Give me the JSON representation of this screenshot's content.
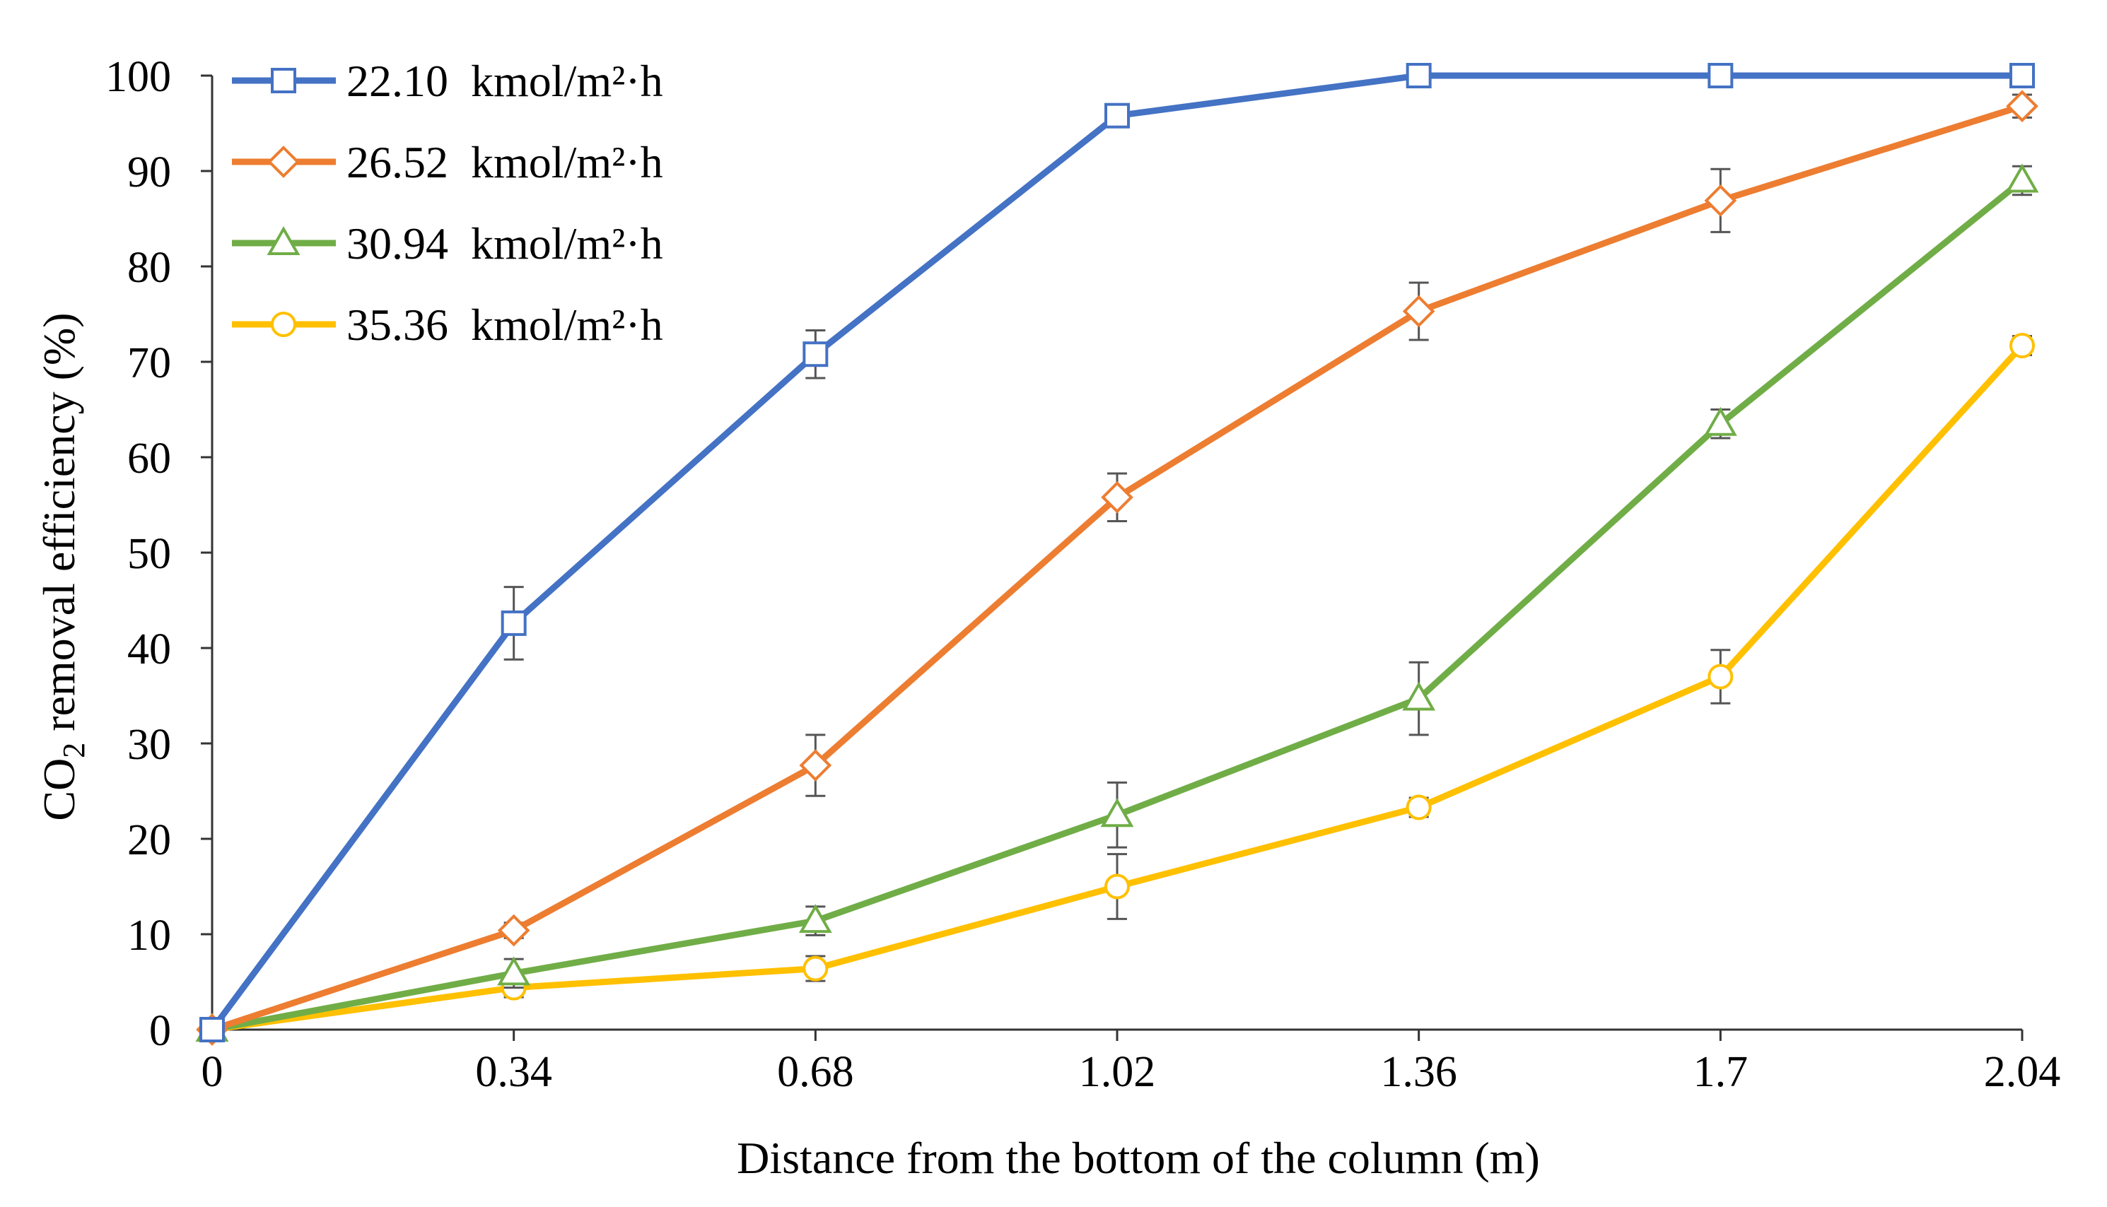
{
  "chart_data": {
    "type": "line",
    "title": "",
    "x": [
      0,
      0.34,
      0.68,
      1.02,
      1.36,
      1.7,
      2.04
    ],
    "x_tick_labels": [
      "0",
      "0.34",
      "0.68",
      "1.02",
      "1.36",
      "1.7",
      "2.04"
    ],
    "xlabel": "Distance from the bottom of the column (m)",
    "ylabel_parts": {
      "prefix": "CO",
      "subscript": "2",
      "suffix": " removal efficiency (%)"
    },
    "ylim": [
      0,
      100
    ],
    "y_ticks": [
      0,
      10,
      20,
      30,
      40,
      50,
      60,
      70,
      80,
      90,
      100
    ],
    "legend_position": "top-left",
    "series": [
      {
        "name": "22.10  kmol/m²·h",
        "color": "#4472C4",
        "marker": "square",
        "values": [
          0,
          42.6,
          70.8,
          95.8,
          100,
          100,
          100
        ],
        "errors": [
          0,
          3.8,
          2.5,
          1.0,
          0,
          0,
          0
        ]
      },
      {
        "name": "26.52  kmol/m²·h",
        "color": "#ED7D31",
        "marker": "diamond",
        "values": [
          0,
          10.4,
          27.7,
          55.8,
          75.3,
          86.9,
          96.8
        ],
        "errors": [
          0,
          0.8,
          3.2,
          2.5,
          3.0,
          3.3,
          1.2
        ]
      },
      {
        "name": "30.94  kmol/m²·h",
        "color": "#70AD47",
        "marker": "triangle",
        "values": [
          0,
          5.9,
          11.4,
          22.5,
          34.7,
          63.5,
          89.0
        ],
        "errors": [
          0,
          1.5,
          1.5,
          3.4,
          3.8,
          1.5,
          1.5
        ]
      },
      {
        "name": "35.36  kmol/m²·h",
        "color": "#FFC000",
        "marker": "circle",
        "values": [
          0,
          4.4,
          6.4,
          15.0,
          23.3,
          37.0,
          71.7
        ],
        "errors": [
          0,
          1.0,
          1.3,
          3.4,
          1.0,
          2.8,
          1.0
        ]
      }
    ]
  }
}
